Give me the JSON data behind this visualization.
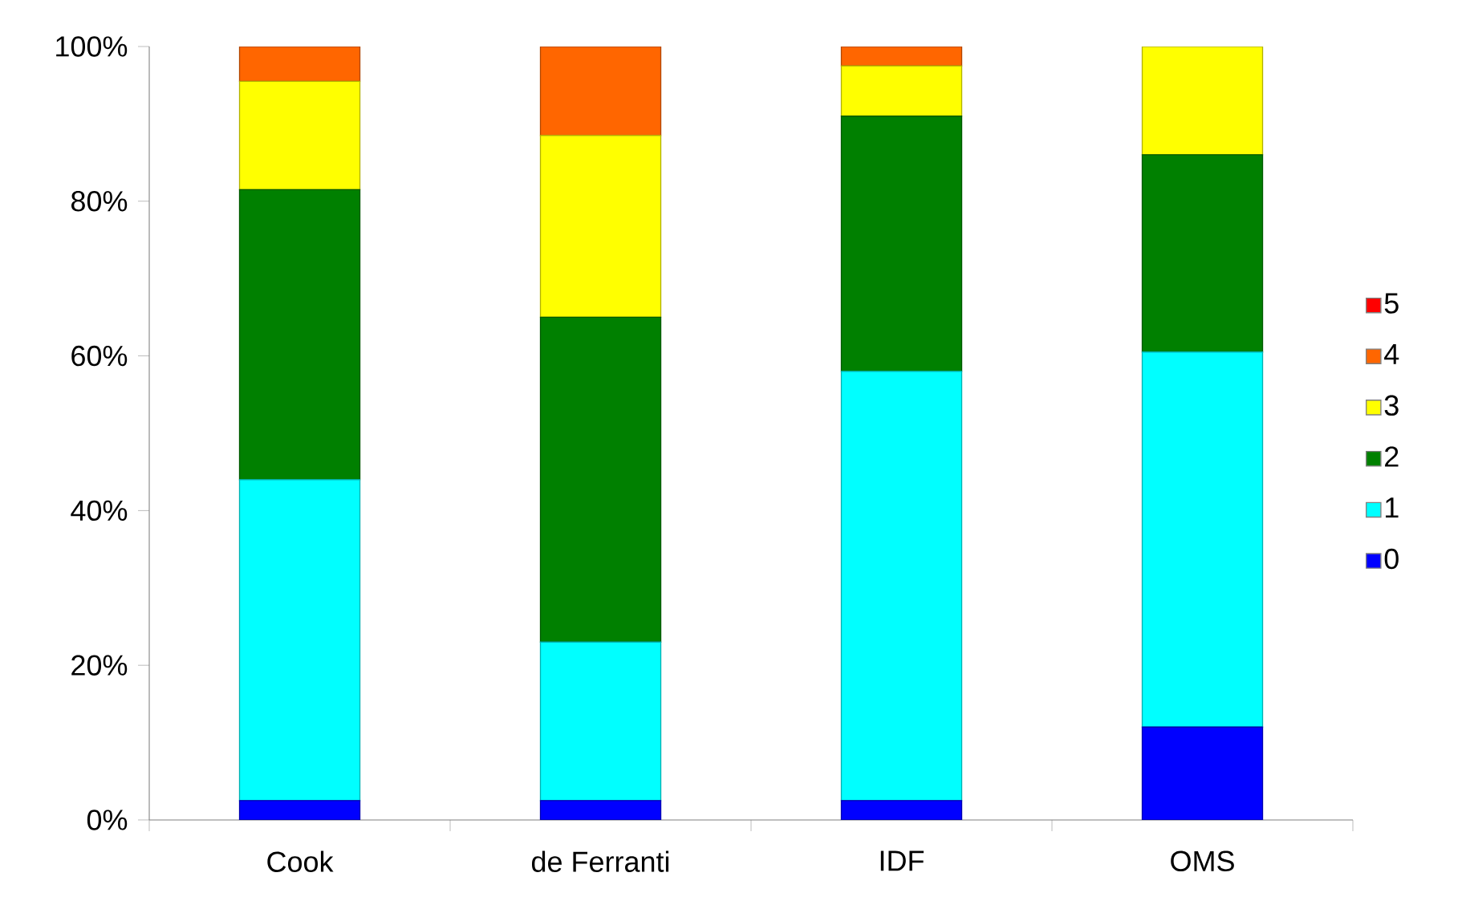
{
  "chart_data": {
    "type": "bar",
    "stacked": true,
    "categories": [
      "Cook",
      "de Ferranti",
      "IDF",
      "OMS"
    ],
    "series": [
      {
        "name": "0",
        "color": "#0000ff",
        "values": [
          2.5,
          2.5,
          2.5,
          12
        ]
      },
      {
        "name": "1",
        "color": "#00ffff",
        "values": [
          41.5,
          20.5,
          55.5,
          48.5
        ]
      },
      {
        "name": "2",
        "color": "#008000",
        "values": [
          37.5,
          42,
          33,
          25.5
        ]
      },
      {
        "name": "3",
        "color": "#ffff00",
        "values": [
          14,
          23.5,
          6.5,
          14
        ]
      },
      {
        "name": "4",
        "color": "#ff6600",
        "values": [
          4.5,
          11.5,
          2.5,
          0
        ]
      },
      {
        "name": "5",
        "color": "#ff0000",
        "values": [
          0,
          0,
          0,
          0
        ]
      }
    ],
    "ylim": [
      0,
      100
    ],
    "yticks": [
      {
        "value": 0,
        "label": "0%"
      },
      {
        "value": 20,
        "label": "20%"
      },
      {
        "value": 40,
        "label": "40%"
      },
      {
        "value": 60,
        "label": "60%"
      },
      {
        "value": 80,
        "label": "80%"
      },
      {
        "value": 100,
        "label": "100%"
      }
    ],
    "grid": false,
    "legend": "right"
  }
}
